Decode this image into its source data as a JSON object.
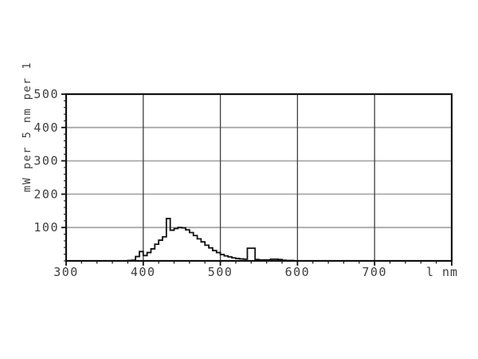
{
  "chart_data": {
    "type": "bar",
    "subtype": "step-histogram",
    "title": "",
    "ylabel": "mW per 5 nm per 1",
    "xlabel_end": "l nm",
    "xlim": [
      300,
      800
    ],
    "ylim": [
      0,
      500
    ],
    "x_ticks": [
      300,
      400,
      500,
      600,
      700
    ],
    "y_ticks": [
      100,
      200,
      300,
      400,
      500
    ],
    "minor_tick_step_x_nm": 20,
    "minor_tick_step_y": 20,
    "grid": {
      "vertical_at": [
        400,
        500,
        600,
        700
      ],
      "horizontal_at": [
        100,
        200,
        300,
        400
      ]
    },
    "bin_start_nm": 300,
    "bin_width_nm": 5,
    "values": [
      0,
      0,
      0,
      0,
      0,
      0,
      0,
      0,
      0,
      0,
      0,
      0,
      0,
      0,
      0,
      0,
      1,
      2,
      13,
      28,
      16,
      25,
      36,
      50,
      62,
      72,
      127,
      92,
      97,
      100,
      99,
      93,
      85,
      76,
      66,
      57,
      47,
      39,
      31,
      25,
      19,
      15,
      12,
      9,
      7,
      6,
      5,
      38,
      38,
      4,
      3,
      3,
      3,
      5,
      5,
      4,
      2,
      1,
      1,
      0,
      0,
      0,
      0,
      0,
      0,
      0,
      0,
      0,
      0,
      0,
      0,
      0,
      0,
      0,
      0,
      0,
      0,
      0,
      0,
      0,
      0,
      0,
      0,
      0,
      0,
      0,
      0,
      0,
      0,
      0,
      0,
      0,
      0,
      0,
      0,
      0,
      0,
      0,
      0,
      0
    ],
    "colors": {
      "background": "#ffffff",
      "curve": "#111111",
      "axis": "#111111",
      "vertical_grid": "#3f3f3f",
      "horizontal_grid": "#a9a9a9",
      "text": "#3d3d3d"
    },
    "legend": null,
    "grid_on": true
  }
}
